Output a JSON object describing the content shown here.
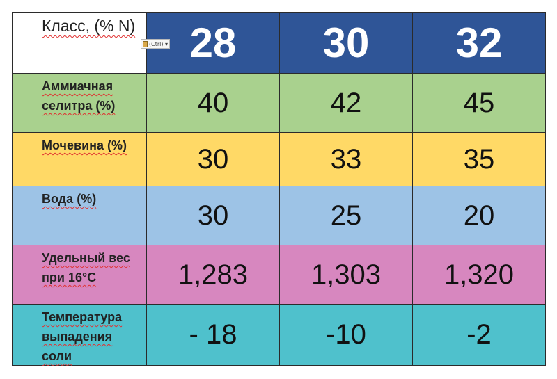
{
  "header": {
    "label": "Класс, (% N)",
    "ctrl_tag": "(Ctrl) ▾",
    "columns": [
      "28",
      "30",
      "32"
    ]
  },
  "rows": [
    {
      "label": "Аммиачная\nселитра (%)",
      "values": [
        "40",
        "42",
        "45"
      ]
    },
    {
      "label": "Мочевина (%)",
      "values": [
        "30",
        "33",
        "35"
      ]
    },
    {
      "label": "Вода (%)",
      "values": [
        "30",
        "25",
        "20"
      ]
    },
    {
      "label": "Удельный вес\nпри 16°C",
      "values": [
        "1,283",
        "1,303",
        "1,320"
      ]
    },
    {
      "label": "Температура\nвыпадения\nсоли",
      "values": [
        "- 18",
        "-10",
        "-2"
      ]
    }
  ],
  "colors": {
    "header_bg": "#2f5597",
    "ammonium_row": "#a9d18e",
    "urea_row": "#ffd966",
    "water_row": "#9dc3e6",
    "weight_row": "#d787bf",
    "temperature_row": "#4fc1cc",
    "spellcheck_underline": "#e03030"
  },
  "icons": {
    "paste_options": "clipboard-icon"
  }
}
